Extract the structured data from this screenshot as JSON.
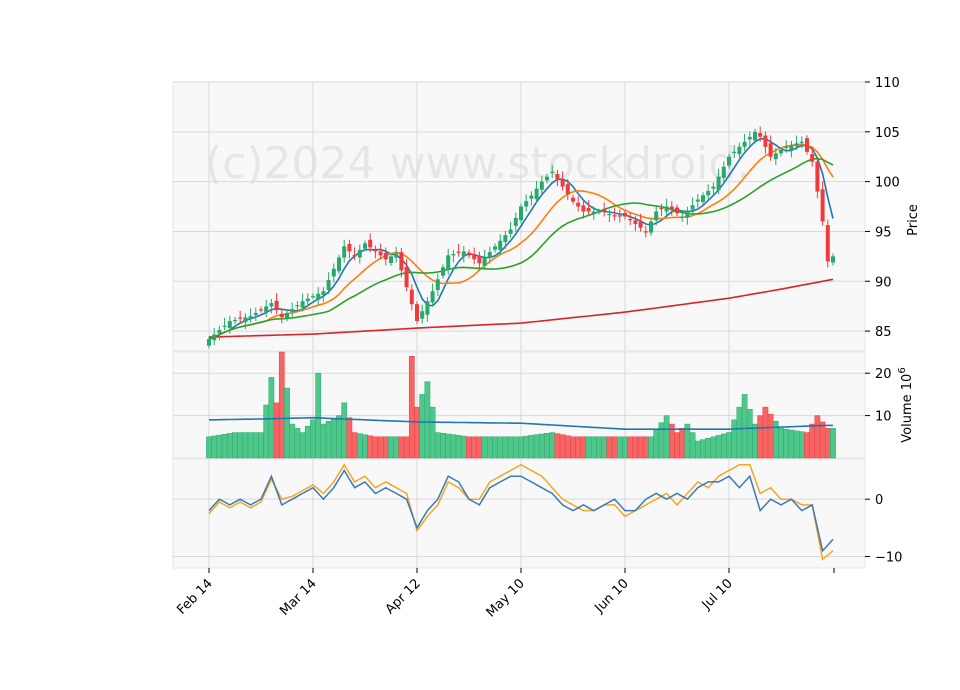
{
  "chart_data": {
    "type": "candlestick",
    "watermark": "(c)2024 www.stockdroid.",
    "x_ticks": [
      "Feb 14",
      "Mar 14",
      "Apr 12",
      "May 10",
      "Jun 10",
      "Jul 10"
    ],
    "x_tick_index": [
      0,
      20,
      40,
      60,
      80,
      100
    ],
    "n_days": 120,
    "colors": {
      "up": "#26a96c",
      "down": "#ef3b3b",
      "ma_fast": "#1f77b4",
      "ma_mid": "#ff7f0e",
      "ma_slow": "#2ca02c",
      "ma_long": "#d62728",
      "vol_ma": "#1f77b4",
      "osc1": "#3a7ab7",
      "osc2": "#f5a623"
    },
    "price_panel": {
      "ylabel": "Price",
      "ylim": [
        83,
        110
      ],
      "yticks": [
        85,
        90,
        95,
        100,
        105,
        110
      ],
      "close_anchors": [
        [
          0,
          84.2
        ],
        [
          4,
          86.0
        ],
        [
          8,
          86.5
        ],
        [
          12,
          87.8
        ],
        [
          14,
          86.4
        ],
        [
          18,
          88.0
        ],
        [
          22,
          89.0
        ],
        [
          26,
          93.5
        ],
        [
          28,
          92.5
        ],
        [
          30,
          93.8
        ],
        [
          34,
          92.2
        ],
        [
          36,
          92.8
        ],
        [
          40,
          86.0
        ],
        [
          43,
          89.0
        ],
        [
          46,
          92.6
        ],
        [
          49,
          93.0
        ],
        [
          52,
          91.8
        ],
        [
          55,
          93.5
        ],
        [
          58,
          95.2
        ],
        [
          60,
          97.5
        ],
        [
          62,
          98.6
        ],
        [
          64,
          100.0
        ],
        [
          66,
          101.0
        ],
        [
          68,
          99.5
        ],
        [
          70,
          98.0
        ],
        [
          72,
          97.0
        ],
        [
          76,
          97.0
        ],
        [
          78,
          96.5
        ],
        [
          80,
          96.5
        ],
        [
          84,
          95.0
        ],
        [
          86,
          97.0
        ],
        [
          88,
          97.5
        ],
        [
          91,
          96.5
        ],
        [
          94,
          98.2
        ],
        [
          97,
          99.5
        ],
        [
          100,
          102.5
        ],
        [
          103,
          104.0
        ],
        [
          105,
          105.0
        ],
        [
          106,
          104.5
        ],
        [
          108,
          102.5
        ],
        [
          111,
          103.5
        ],
        [
          114,
          104.0
        ],
        [
          116,
          102.0
        ],
        [
          117,
          99.0
        ],
        [
          118,
          96.0
        ],
        [
          119,
          92.0
        ],
        [
          120,
          92.5
        ]
      ],
      "ma_long_anchors": [
        [
          0,
          84.4
        ],
        [
          20,
          84.7
        ],
        [
          40,
          85.3
        ],
        [
          60,
          85.8
        ],
        [
          80,
          86.9
        ],
        [
          100,
          88.3
        ],
        [
          110,
          89.2
        ],
        [
          120,
          90.2
        ]
      ]
    },
    "volume_panel": {
      "ylabel": "Volume  10^6",
      "ylim": [
        0,
        25
      ],
      "yticks": [
        10,
        20
      ],
      "vol_anchors": [
        [
          0,
          5
        ],
        [
          5,
          6
        ],
        [
          10,
          6
        ],
        [
          12,
          19
        ],
        [
          13,
          13
        ],
        [
          14,
          25
        ],
        [
          16,
          8
        ],
        [
          18,
          6
        ],
        [
          20,
          9
        ],
        [
          21,
          20
        ],
        [
          22,
          8
        ],
        [
          25,
          10
        ],
        [
          26,
          13
        ],
        [
          28,
          6
        ],
        [
          32,
          5
        ],
        [
          38,
          5
        ],
        [
          39,
          24
        ],
        [
          40,
          12
        ],
        [
          42,
          18
        ],
        [
          44,
          6
        ],
        [
          50,
          5
        ],
        [
          60,
          5
        ],
        [
          66,
          6
        ],
        [
          70,
          5
        ],
        [
          80,
          5
        ],
        [
          85,
          5
        ],
        [
          88,
          10
        ],
        [
          90,
          6
        ],
        [
          92,
          8
        ],
        [
          94,
          4
        ],
        [
          100,
          6
        ],
        [
          103,
          15
        ],
        [
          105,
          8
        ],
        [
          107,
          12
        ],
        [
          110,
          7
        ],
        [
          115,
          6
        ],
        [
          117,
          10
        ],
        [
          119,
          7
        ]
      ],
      "vol_ma_anchors": [
        [
          0,
          9
        ],
        [
          10,
          9.2
        ],
        [
          20,
          9.5
        ],
        [
          40,
          8.5
        ],
        [
          60,
          8.2
        ],
        [
          80,
          6.8
        ],
        [
          100,
          6.8
        ],
        [
          110,
          7.3
        ],
        [
          119,
          7.7
        ]
      ]
    },
    "oscillator_panel": {
      "ylim": [
        -12,
        7
      ],
      "yticks": [
        0,
        -10
      ],
      "osc1_anchors": [
        [
          0,
          -2
        ],
        [
          2,
          0
        ],
        [
          4,
          -1
        ],
        [
          6,
          0
        ],
        [
          8,
          -1
        ],
        [
          10,
          0
        ],
        [
          12,
          4
        ],
        [
          14,
          -1
        ],
        [
          16,
          0
        ],
        [
          18,
          1
        ],
        [
          20,
          2
        ],
        [
          22,
          0
        ],
        [
          24,
          2
        ],
        [
          26,
          5
        ],
        [
          28,
          2
        ],
        [
          30,
          3
        ],
        [
          32,
          1
        ],
        [
          34,
          2
        ],
        [
          36,
          1
        ],
        [
          38,
          0
        ],
        [
          40,
          -5
        ],
        [
          42,
          -2
        ],
        [
          44,
          0
        ],
        [
          46,
          4
        ],
        [
          48,
          3
        ],
        [
          50,
          0
        ],
        [
          52,
          -1
        ],
        [
          54,
          2
        ],
        [
          56,
          3
        ],
        [
          58,
          4
        ],
        [
          60,
          4
        ],
        [
          62,
          3
        ],
        [
          64,
          2
        ],
        [
          66,
          1
        ],
        [
          68,
          -1
        ],
        [
          70,
          -2
        ],
        [
          72,
          -1
        ],
        [
          74,
          -2
        ],
        [
          76,
          -1
        ],
        [
          78,
          0
        ],
        [
          80,
          -2
        ],
        [
          82,
          -2
        ],
        [
          84,
          0
        ],
        [
          86,
          1
        ],
        [
          88,
          0
        ],
        [
          90,
          1
        ],
        [
          92,
          0
        ],
        [
          94,
          2
        ],
        [
          96,
          3
        ],
        [
          98,
          3
        ],
        [
          100,
          4
        ],
        [
          102,
          2
        ],
        [
          104,
          4
        ],
        [
          106,
          -2
        ],
        [
          108,
          0
        ],
        [
          110,
          -1
        ],
        [
          112,
          0
        ],
        [
          114,
          -2
        ],
        [
          116,
          -1
        ],
        [
          118,
          -9
        ],
        [
          120,
          -7
        ]
      ],
      "osc2_anchors": [
        [
          0,
          -2.5
        ],
        [
          2,
          -0.5
        ],
        [
          4,
          -1.5
        ],
        [
          6,
          -0.5
        ],
        [
          8,
          -1.5
        ],
        [
          10,
          -0.5
        ],
        [
          12,
          3.5
        ],
        [
          14,
          0
        ],
        [
          16,
          0.5
        ],
        [
          18,
          1.5
        ],
        [
          20,
          2.5
        ],
        [
          22,
          1
        ],
        [
          24,
          3
        ],
        [
          26,
          6
        ],
        [
          28,
          3
        ],
        [
          30,
          4
        ],
        [
          32,
          2
        ],
        [
          34,
          3
        ],
        [
          36,
          2
        ],
        [
          38,
          1
        ],
        [
          40,
          -5.5
        ],
        [
          42,
          -3
        ],
        [
          44,
          -1
        ],
        [
          46,
          3
        ],
        [
          48,
          2
        ],
        [
          50,
          0
        ],
        [
          52,
          0
        ],
        [
          54,
          3
        ],
        [
          56,
          4
        ],
        [
          58,
          5
        ],
        [
          60,
          6
        ],
        [
          62,
          5
        ],
        [
          64,
          4
        ],
        [
          66,
          2
        ],
        [
          68,
          0
        ],
        [
          70,
          -1
        ],
        [
          72,
          -2
        ],
        [
          74,
          -2
        ],
        [
          76,
          -1
        ],
        [
          78,
          -1
        ],
        [
          80,
          -3
        ],
        [
          82,
          -2
        ],
        [
          84,
          -1
        ],
        [
          86,
          0
        ],
        [
          88,
          1
        ],
        [
          90,
          -1
        ],
        [
          92,
          1
        ],
        [
          94,
          3
        ],
        [
          96,
          2
        ],
        [
          98,
          4
        ],
        [
          100,
          5
        ],
        [
          102,
          6
        ],
        [
          104,
          6
        ],
        [
          106,
          1
        ],
        [
          108,
          2
        ],
        [
          110,
          0
        ],
        [
          112,
          0
        ],
        [
          114,
          -1
        ],
        [
          116,
          -1
        ],
        [
          118,
          -10.5
        ],
        [
          120,
          -9
        ]
      ]
    }
  }
}
